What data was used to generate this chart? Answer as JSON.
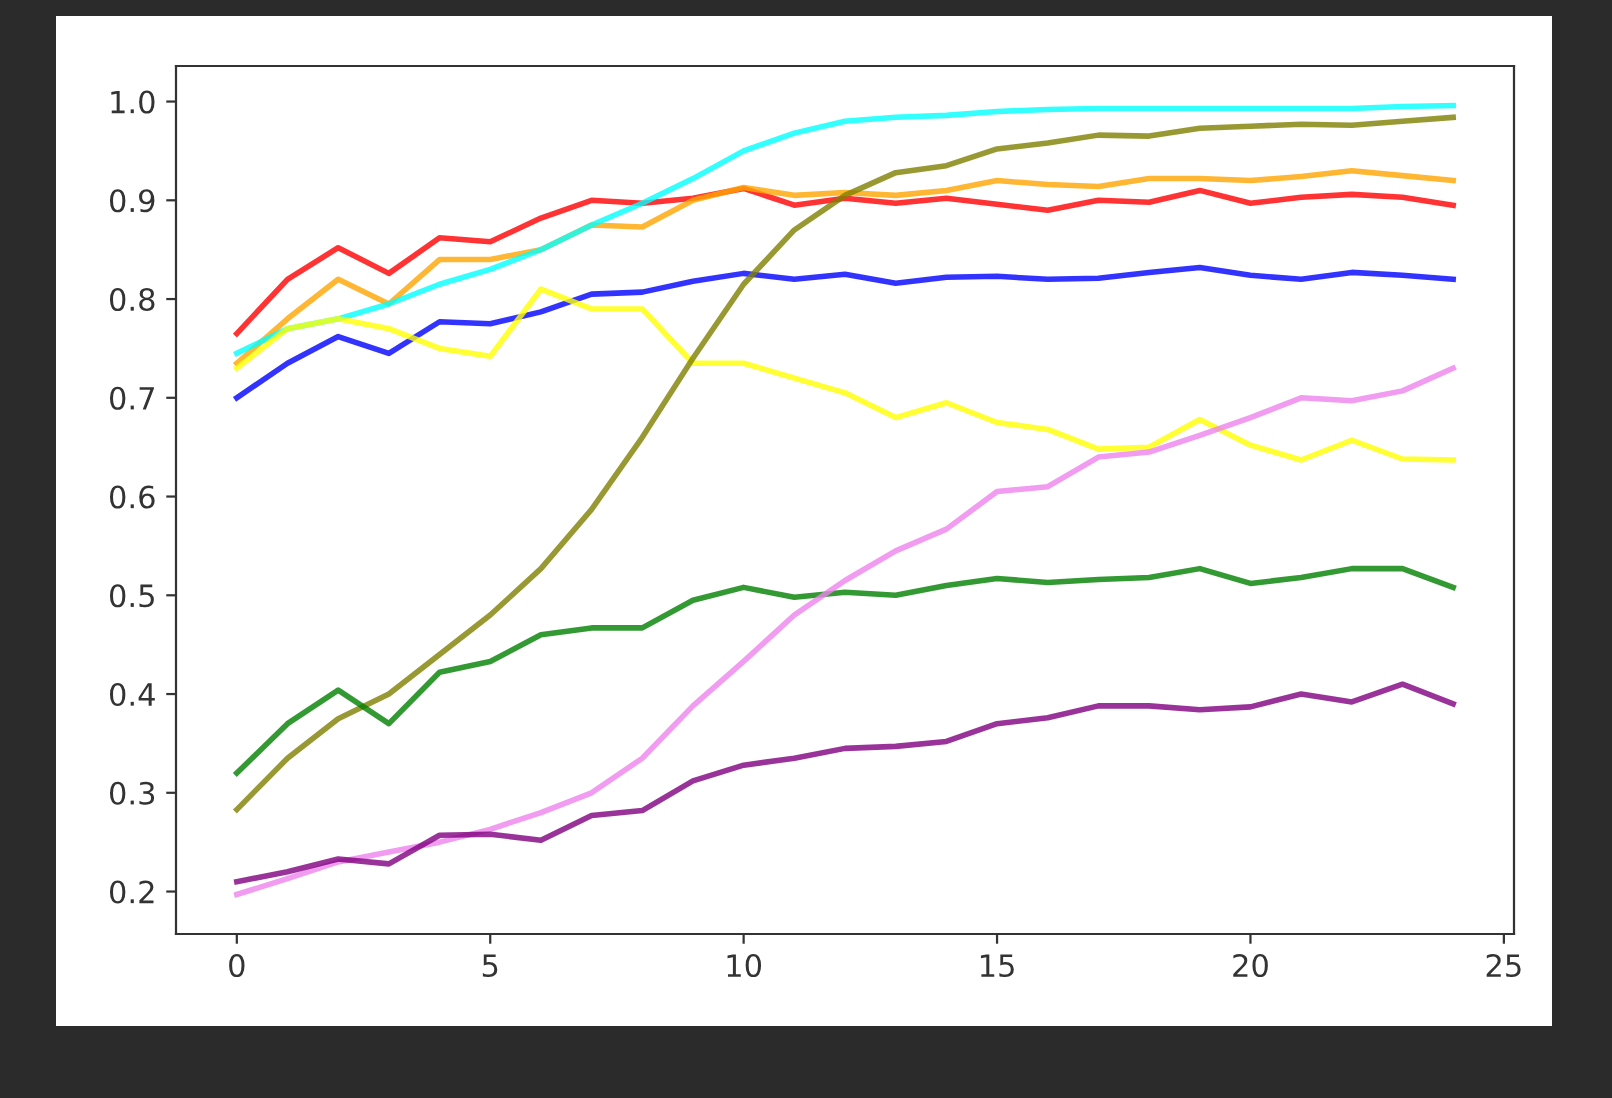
{
  "chart_data": {
    "type": "line",
    "x": [
      0,
      1,
      2,
      3,
      4,
      5,
      6,
      7,
      8,
      9,
      10,
      11,
      12,
      13,
      14,
      15,
      16,
      17,
      18,
      19,
      20,
      21,
      22,
      23,
      24
    ],
    "series": [
      {
        "color": "#ff0000",
        "values": [
          0.765,
          0.82,
          0.852,
          0.826,
          0.862,
          0.858,
          0.882,
          0.9,
          0.897,
          0.902,
          0.912,
          0.895,
          0.902,
          0.897,
          0.902,
          0.896,
          0.89,
          0.9,
          0.898,
          0.91,
          0.897,
          0.903,
          0.906,
          0.903,
          0.895
        ]
      },
      {
        "color": "#ffa500",
        "values": [
          0.735,
          0.78,
          0.82,
          0.795,
          0.84,
          0.84,
          0.85,
          0.875,
          0.873,
          0.9,
          0.913,
          0.905,
          0.908,
          0.905,
          0.91,
          0.92,
          0.916,
          0.914,
          0.922,
          0.922,
          0.92,
          0.924,
          0.93,
          0.925,
          0.92
        ]
      },
      {
        "color": "#00ffff",
        "values": [
          0.745,
          0.77,
          0.78,
          0.795,
          0.815,
          0.83,
          0.85,
          0.875,
          0.897,
          0.922,
          0.95,
          0.968,
          0.98,
          0.984,
          0.986,
          0.99,
          0.992,
          0.993,
          0.993,
          0.993,
          0.993,
          0.993,
          0.993,
          0.995,
          0.996
        ]
      },
      {
        "color": "#0000ff",
        "values": [
          0.7,
          0.735,
          0.762,
          0.745,
          0.777,
          0.775,
          0.787,
          0.805,
          0.807,
          0.818,
          0.826,
          0.82,
          0.825,
          0.816,
          0.822,
          0.823,
          0.82,
          0.821,
          0.827,
          0.832,
          0.824,
          0.82,
          0.827,
          0.824,
          0.82
        ]
      },
      {
        "color": "#ffff00",
        "values": [
          0.73,
          0.77,
          0.78,
          0.77,
          0.75,
          0.742,
          0.81,
          0.79,
          0.79,
          0.735,
          0.735,
          0.72,
          0.705,
          0.68,
          0.695,
          0.675,
          0.668,
          0.648,
          0.65,
          0.678,
          0.652,
          0.637,
          0.657,
          0.638,
          0.637
        ]
      },
      {
        "color": "#808000",
        "values": [
          0.283,
          0.335,
          0.375,
          0.4,
          0.44,
          0.48,
          0.527,
          0.587,
          0.66,
          0.74,
          0.815,
          0.87,
          0.905,
          0.928,
          0.935,
          0.952,
          0.958,
          0.966,
          0.965,
          0.973,
          0.975,
          0.977,
          0.976,
          0.98,
          0.984
        ]
      },
      {
        "color": "#008000",
        "values": [
          0.32,
          0.37,
          0.404,
          0.37,
          0.422,
          0.433,
          0.46,
          0.467,
          0.467,
          0.495,
          0.508,
          0.498,
          0.503,
          0.5,
          0.51,
          0.517,
          0.513,
          0.516,
          0.518,
          0.527,
          0.512,
          0.518,
          0.527,
          0.527,
          0.508
        ]
      },
      {
        "color": "#ee82ee",
        "values": [
          0.197,
          0.213,
          0.23,
          0.24,
          0.25,
          0.263,
          0.28,
          0.3,
          0.335,
          0.388,
          0.433,
          0.48,
          0.515,
          0.545,
          0.567,
          0.605,
          0.61,
          0.64,
          0.645,
          0.662,
          0.68,
          0.7,
          0.697,
          0.707,
          0.73
        ]
      },
      {
        "color": "#800080",
        "values": [
          0.21,
          0.22,
          0.233,
          0.228,
          0.257,
          0.258,
          0.252,
          0.277,
          0.282,
          0.312,
          0.328,
          0.335,
          0.345,
          0.347,
          0.352,
          0.37,
          0.376,
          0.388,
          0.388,
          0.384,
          0.387,
          0.4,
          0.392,
          0.41,
          0.39
        ]
      }
    ],
    "xlim": [
      -1.2,
      25.2
    ],
    "xticks": [
      0,
      5,
      10,
      15,
      20,
      25
    ],
    "ylim": [
      0.157,
      1.036
    ],
    "yticks": [
      0.2,
      0.3,
      0.4,
      0.5,
      0.6,
      0.7,
      0.8,
      0.9,
      {
        "value": 1,
        "label": "1.0"
      }
    ],
    "grid": false,
    "legend": false
  }
}
